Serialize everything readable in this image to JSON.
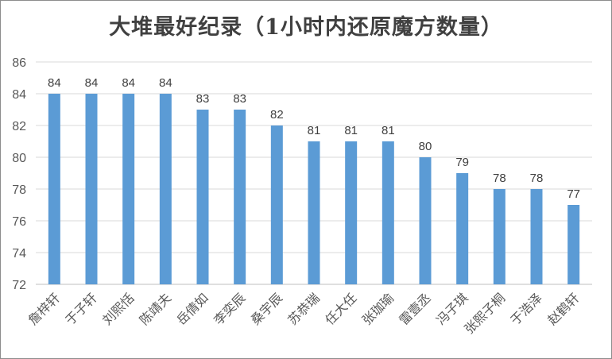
{
  "chart_data": {
    "type": "bar",
    "title": "大堆最好纪录（1小时内还原魔方数量）",
    "xlabel": "",
    "ylabel": "",
    "ylim": [
      72,
      86
    ],
    "yticks": [
      72,
      74,
      76,
      78,
      80,
      82,
      84,
      86
    ],
    "grid": "horizontal",
    "legend": "none",
    "bar_color": "#5b9bd5",
    "categories": [
      "詹梓轩",
      "于子轩",
      "刘熙恬",
      "陈靖夫",
      "岳倩如",
      "李奕辰",
      "桑宇辰",
      "苏恭瑞",
      "任大任",
      "张珈瑜",
      "雷壹丞",
      "冯子琪",
      "张熙子桐",
      "于浩泽",
      "赵鹤轩"
    ],
    "values": [
      84,
      84,
      84,
      84,
      83,
      83,
      82,
      81,
      81,
      81,
      80,
      79,
      78,
      78,
      77
    ]
  }
}
